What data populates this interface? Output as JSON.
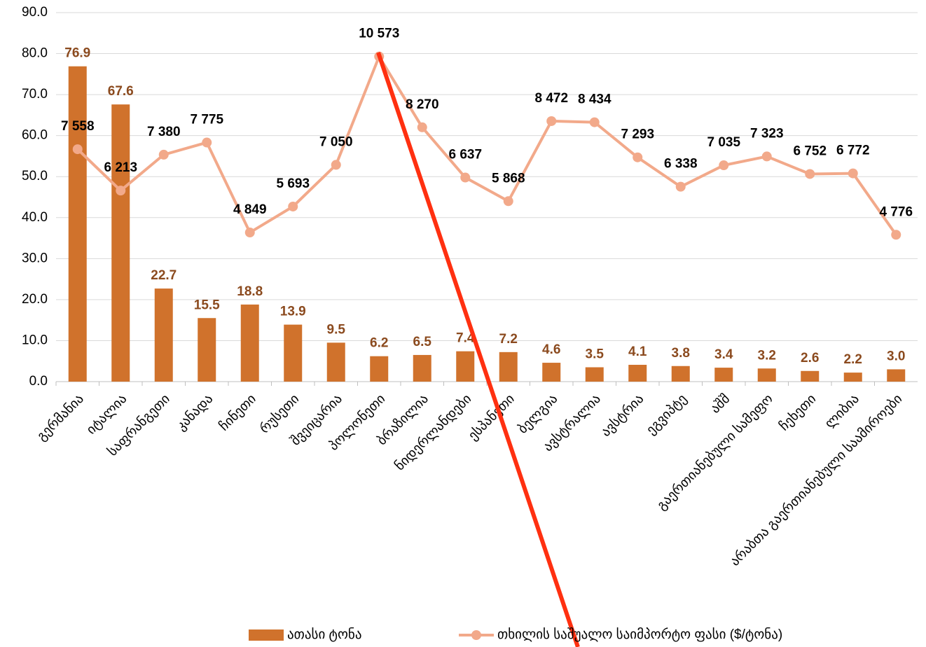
{
  "chart_data": {
    "type": "bar",
    "categories": [
      "გერმანია",
      "იტალია",
      "საფრანგეთი",
      "კანადა",
      "ჩინეთი",
      "რუსეთი",
      "შვეიცარია",
      "პოლონეთი",
      "ბრაზილია",
      "ნიდერლანდები",
      "ესპანეთი",
      "ბელგია",
      "ავსტრალია",
      "ავსტრია",
      "ეგვიპტე",
      "აშშ",
      "გაერთიანებული სამეფო",
      "ჩეხეთი",
      "ლიბია",
      "არაბთა გაერთიანებული საამიროები"
    ],
    "series": [
      {
        "name": "ათასი ტონა",
        "type": "bar",
        "color": "#d0722c",
        "label_color": "#8b4a1e",
        "values": [
          76.9,
          67.6,
          22.7,
          15.5,
          18.8,
          13.9,
          9.5,
          6.2,
          6.5,
          7.4,
          7.2,
          4.6,
          3.5,
          4.1,
          3.8,
          3.4,
          3.2,
          2.6,
          2.2,
          3.0
        ],
        "value_labels": [
          "76.9",
          "67.6",
          "22.7",
          "15.5",
          "18.8",
          "13.9",
          "9.5",
          "6.2",
          "6.5",
          "7.4",
          "7.2",
          "4.6",
          "3.5",
          "4.1",
          "3.8",
          "3.4",
          "3.2",
          "2.6",
          "2.2",
          "3.0"
        ]
      },
      {
        "name": "თხილის საშუალო საიმპორტო ფასი ($/ტონა)",
        "type": "line",
        "axis": "y2",
        "color": "#f2a98a",
        "label_color": "#000000",
        "values": [
          7558,
          6213,
          7380,
          7775,
          4849,
          5693,
          7050,
          10573,
          8270,
          6637,
          5868,
          8472,
          8434,
          7293,
          6338,
          7035,
          7323,
          6752,
          6772,
          4776
        ],
        "value_labels": [
          "7 558",
          "6 213",
          "7 380",
          "7 775",
          "4 849",
          "5 693",
          "7 050",
          "10 573",
          "8 270",
          "6 637",
          "5 868",
          "8 472",
          "8 434",
          "7 293",
          "6 338",
          "7 035",
          "7 323",
          "6 752",
          "6 772",
          "4 776"
        ]
      }
    ],
    "ylim": [
      0,
      90
    ],
    "yticks": [
      {
        "value": 0,
        "label": "0.0"
      },
      {
        "value": 10,
        "label": "10.0"
      },
      {
        "value": 20,
        "label": "20.0"
      },
      {
        "value": 30,
        "label": "30.0"
      },
      {
        "value": 40,
        "label": "40.0"
      },
      {
        "value": 50,
        "label": "50.0"
      },
      {
        "value": 60,
        "label": "60.0"
      },
      {
        "value": 70,
        "label": "70.0"
      },
      {
        "value": 80,
        "label": "80.0"
      },
      {
        "value": 90,
        "label": "90.0"
      }
    ],
    "y2lim": [
      0,
      12000
    ],
    "grid": true,
    "legend": "bottom"
  }
}
